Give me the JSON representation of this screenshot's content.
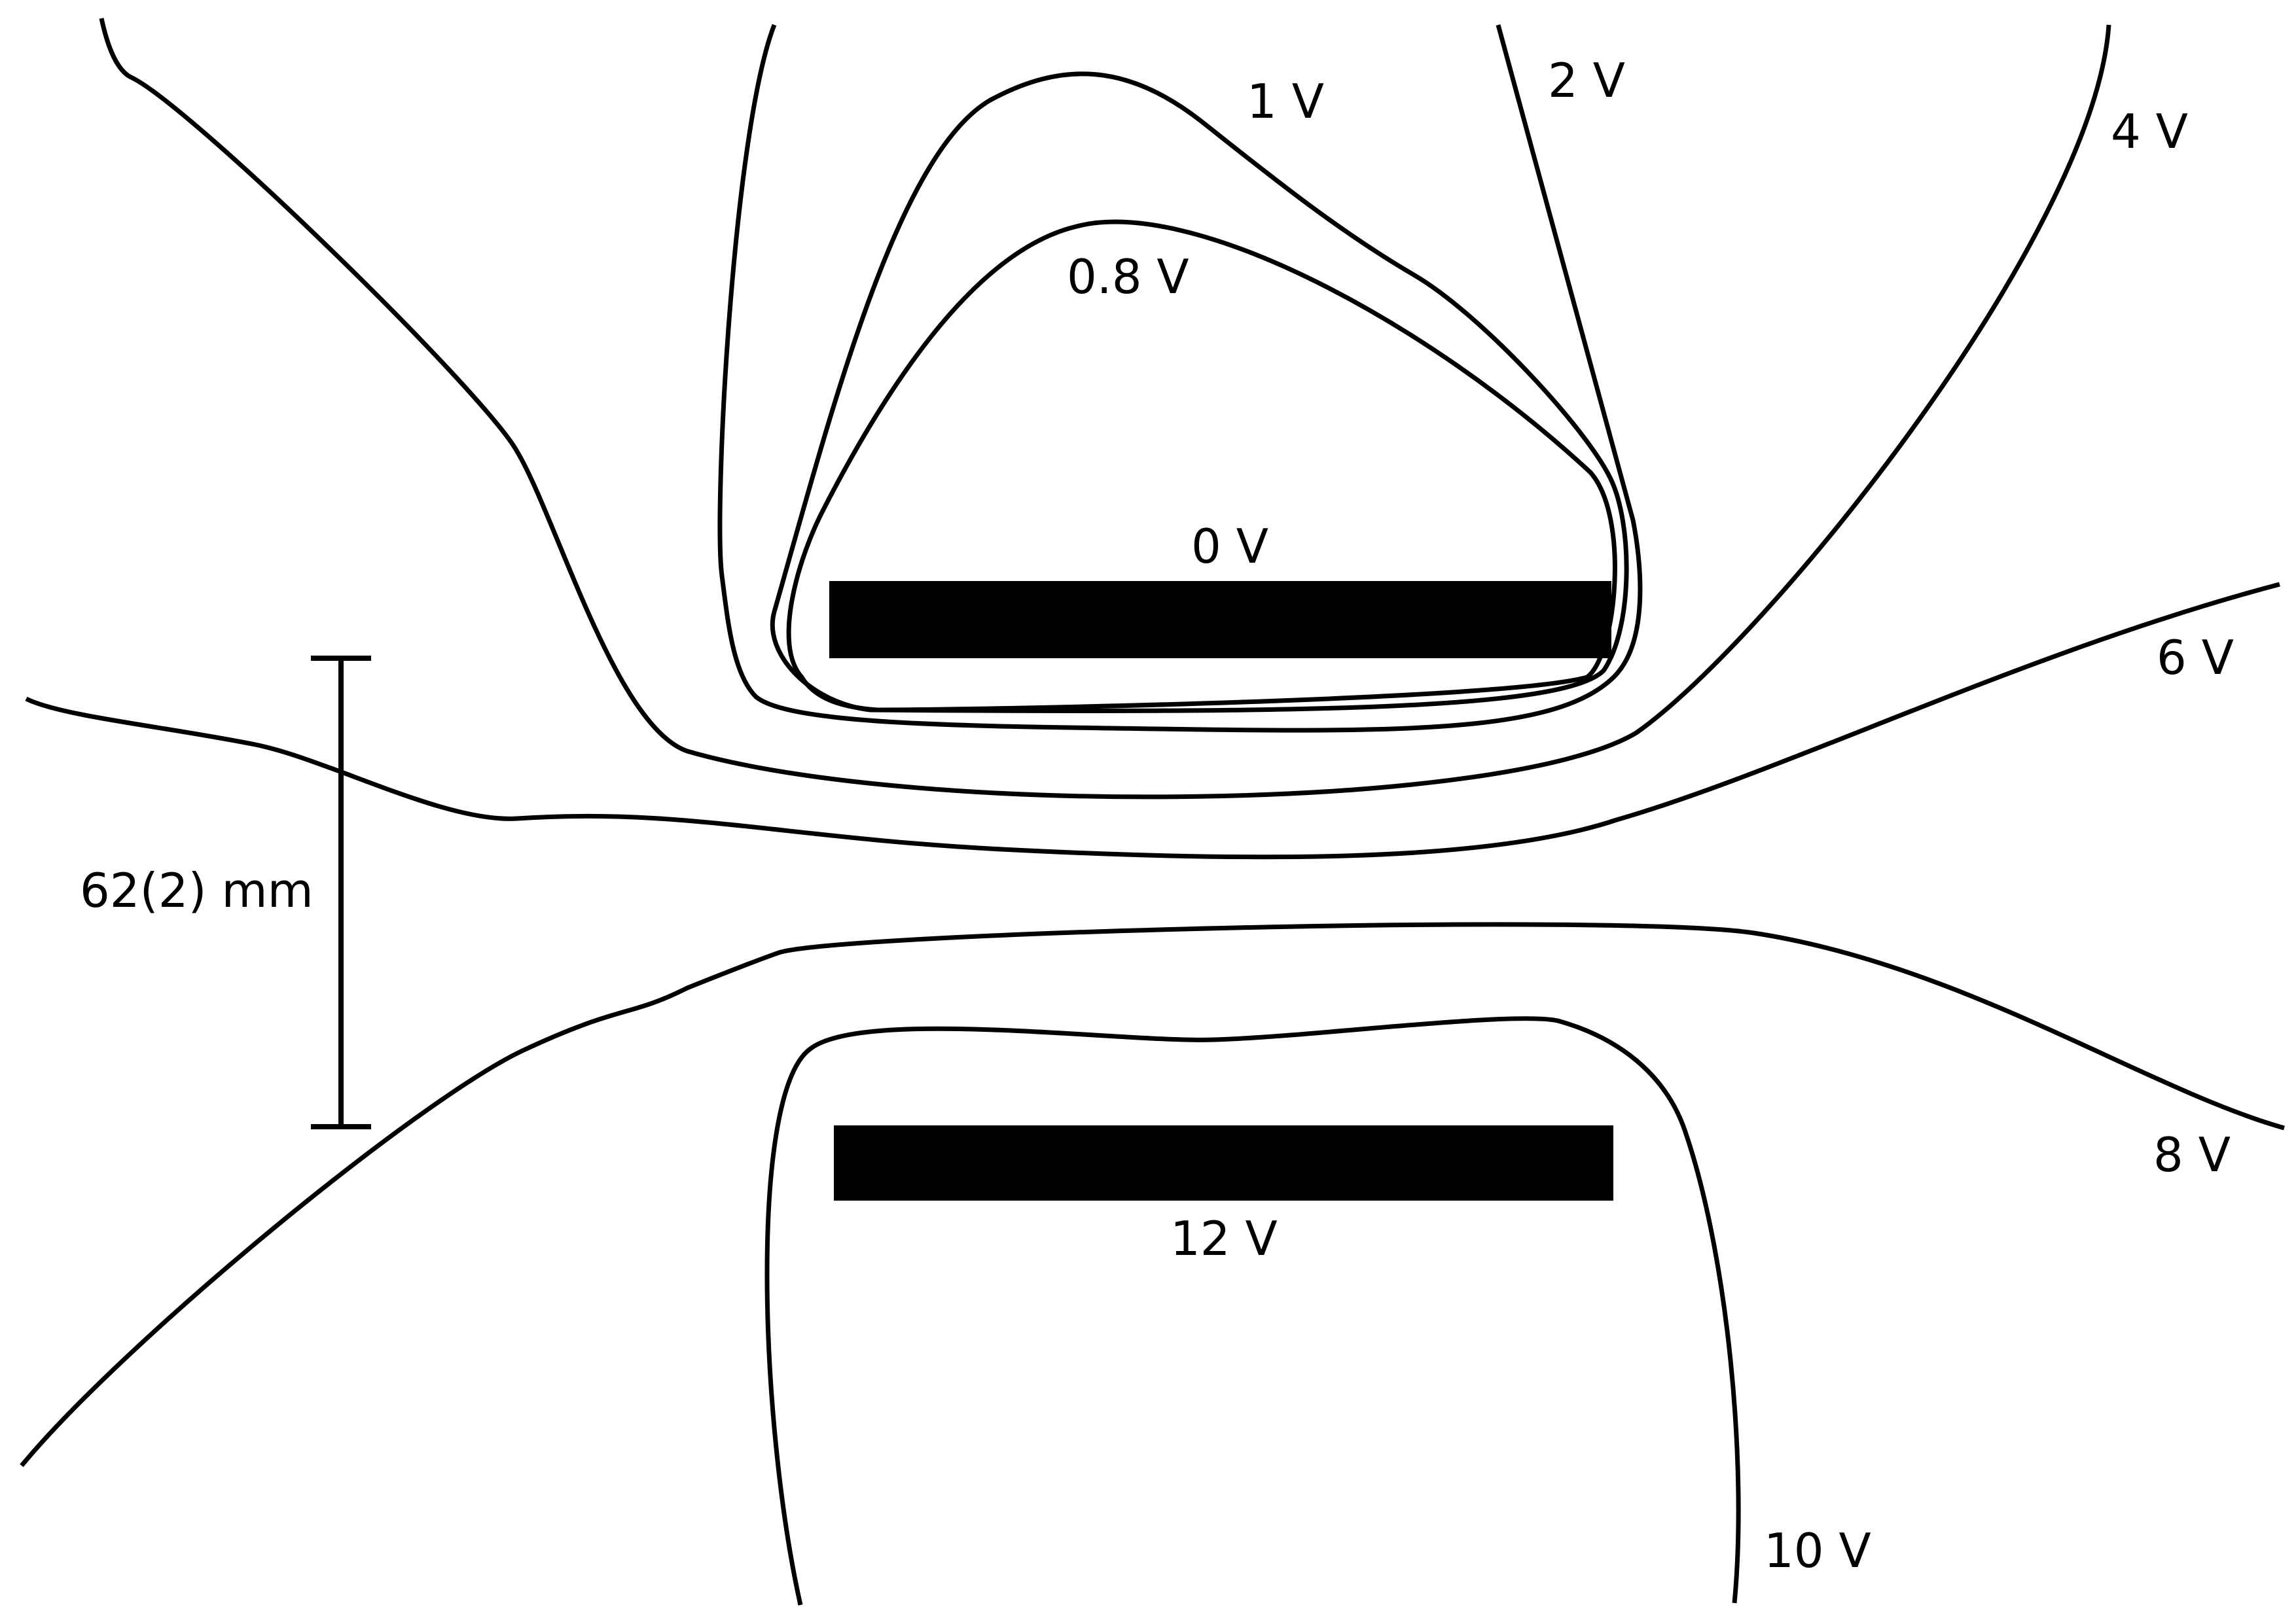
{
  "electrodes": {
    "top_potential": "0 V",
    "bottom_potential": "12 V"
  },
  "equipotential_labels": {
    "v0_8": "0.8 V",
    "v1": "1 V",
    "v2": "2 V",
    "v4": "4 V",
    "v6": "6 V",
    "v8": "8 V",
    "v10": "10 V"
  },
  "scale_bar": {
    "label": "62(2) mm"
  }
}
